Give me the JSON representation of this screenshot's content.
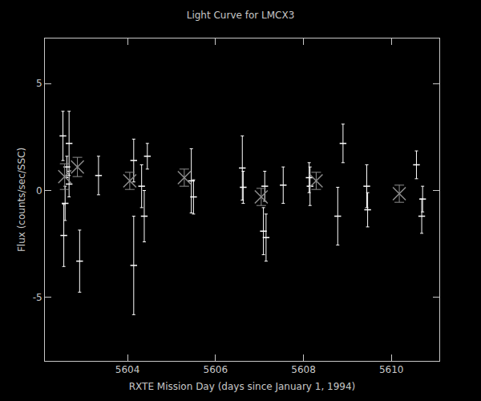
{
  "chart_data": {
    "type": "scatter",
    "title": "Light Curve for LMCX3",
    "x_label": "RXTE Mission Day (days since January 1, 1994)",
    "y_label": "Flux (counts/sec/SSC)",
    "xlim": [
      5602.12,
      5611.09
    ],
    "ylim": [
      -7.96,
      7.1
    ],
    "xticks": [
      5604,
      5606,
      5608,
      5610
    ],
    "yticks": [
      -5,
      0,
      5
    ],
    "grid": false,
    "series": [
      {
        "color": "#ffffff",
        "marker": "dash",
        "x": [
          5602.53,
          5602.55,
          5602.58,
          5602.62,
          5602.67,
          5602.67,
          5602.91,
          5603.34,
          5604.14,
          5604.14,
          5604.32,
          5604.38,
          5604.45,
          5605.45,
          5605.5,
          5606.61,
          5606.63,
          5607.09,
          5607.12,
          5607.15,
          5607.54,
          5608.13,
          5608.15,
          5608.78,
          5608.9,
          5609.44,
          5609.46,
          5610.57,
          5610.69,
          5610.71
        ],
        "values": [
          2.55,
          -2.1,
          -0.6,
          1.1,
          2.2,
          0.3,
          -3.3,
          0.7,
          -3.5,
          1.4,
          0.2,
          -1.2,
          1.6,
          0.45,
          -0.3,
          1.05,
          0.15,
          -1.9,
          0.2,
          -2.2,
          0.25,
          0.6,
          0.2,
          -1.2,
          2.2,
          0.2,
          -0.9,
          1.2,
          -1.2,
          -0.4
        ],
        "errors": [
          1.15,
          1.45,
          0.8,
          0.5,
          1.5,
          0.6,
          1.45,
          0.9,
          2.3,
          1.0,
          1.0,
          1.2,
          0.6,
          1.5,
          0.8,
          1.5,
          0.75,
          1.1,
          0.7,
          1.1,
          0.85,
          0.7,
          0.9,
          1.35,
          0.9,
          1.0,
          0.8,
          0.65,
          0.8,
          0.6
        ]
      },
      {
        "color": "#8c8c8c",
        "marker": "x",
        "x": [
          5602.57,
          5602.86,
          5604.05,
          5605.29,
          5607.04,
          5608.29,
          5610.18
        ],
        "values": [
          0.65,
          1.1,
          0.45,
          0.6,
          -0.3,
          0.45,
          -0.15
        ],
        "errors": [
          0.6,
          0.45,
          0.4,
          0.4,
          0.4,
          0.4,
          0.4
        ]
      }
    ]
  }
}
